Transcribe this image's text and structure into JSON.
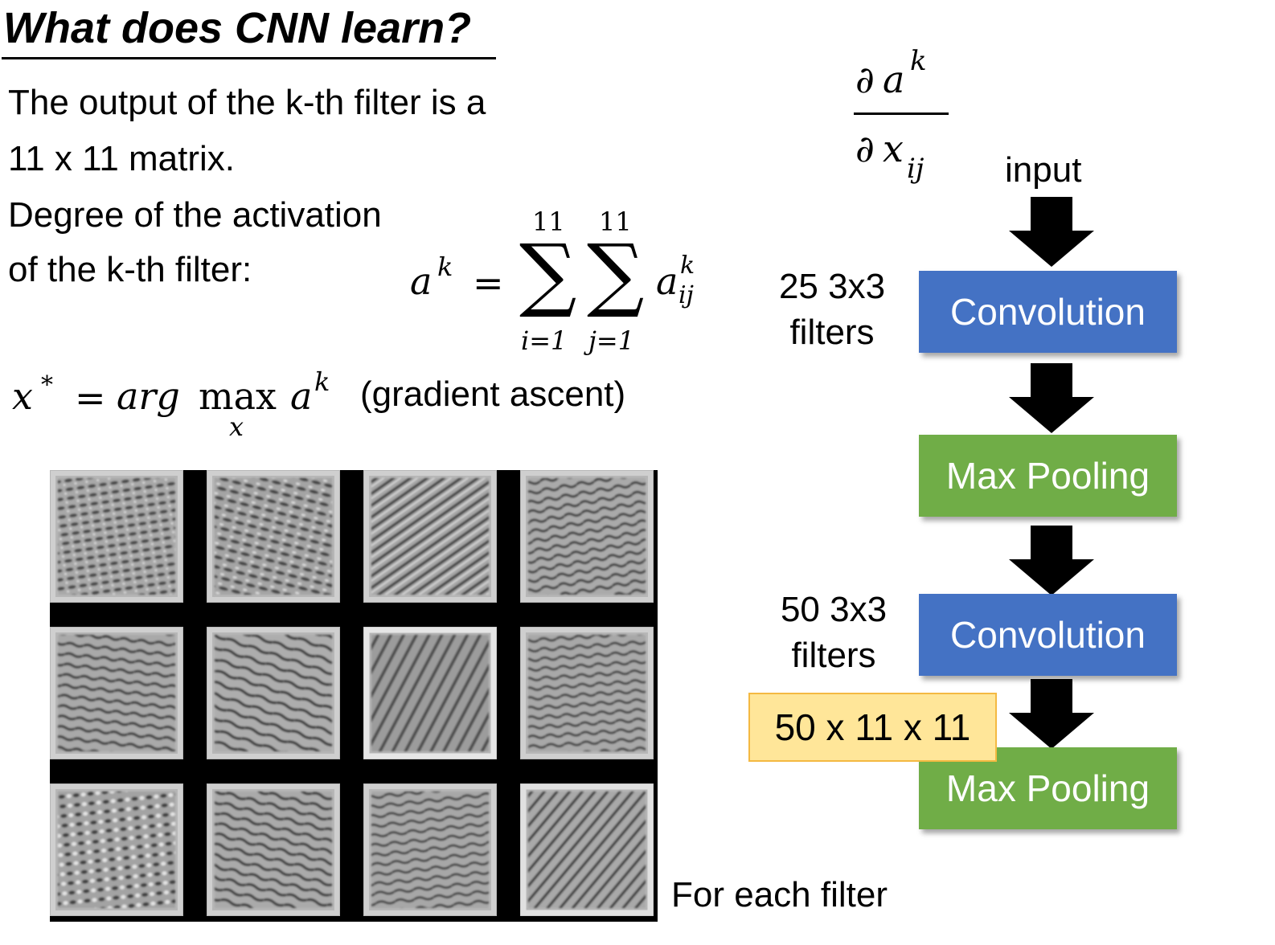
{
  "header": {
    "title": "What does CNN learn?"
  },
  "text": {
    "line1": "The output of the k-th filter is a",
    "line2": "11 x 11 matrix.",
    "line3": "Degree of the activation",
    "line4": "of the k-th filter:",
    "gradient_note": "(gradient ascent)",
    "for_each_filter": "For each filter"
  },
  "formula_sum": {
    "lhs": "a",
    "lhs_sup": "k",
    "equals": "=",
    "sum1_upper": "11",
    "sum1_lower": "i=1",
    "sum2_upper": "11",
    "sum2_lower": "j=1",
    "term": "a",
    "term_sup": "k",
    "term_sub": "ij",
    "sigma": "∑"
  },
  "formula_argmax": {
    "x": "x",
    "star": "*",
    "equals": "=",
    "arg": "arg",
    "max": "max",
    "max_sub": "x",
    "a": "a",
    "a_sup": "k"
  },
  "formula_derivative": {
    "num_partial": "∂",
    "num_var": "a",
    "num_sup": "k",
    "den_partial": "∂",
    "den_var": "x",
    "den_sub": "ij"
  },
  "pipeline": {
    "input_label": "input",
    "layers": [
      {
        "label": "Convolution",
        "color": "#4472C4"
      },
      {
        "label": "Max Pooling",
        "color": "#70AD47"
      },
      {
        "label": "Convolution",
        "color": "#4472C4"
      },
      {
        "label": "Max Pooling",
        "color": "#70AD47"
      }
    ],
    "conv1_note_line1": "25 3x3",
    "conv1_note_line2": "filters",
    "conv2_note_line1": "50 3x3",
    "conv2_note_line2": "filters",
    "output_shape": "50 x 11 x 11",
    "output_shape_bg": "#FFE699"
  },
  "filter_grid": {
    "rows": 3,
    "cols": 4
  }
}
